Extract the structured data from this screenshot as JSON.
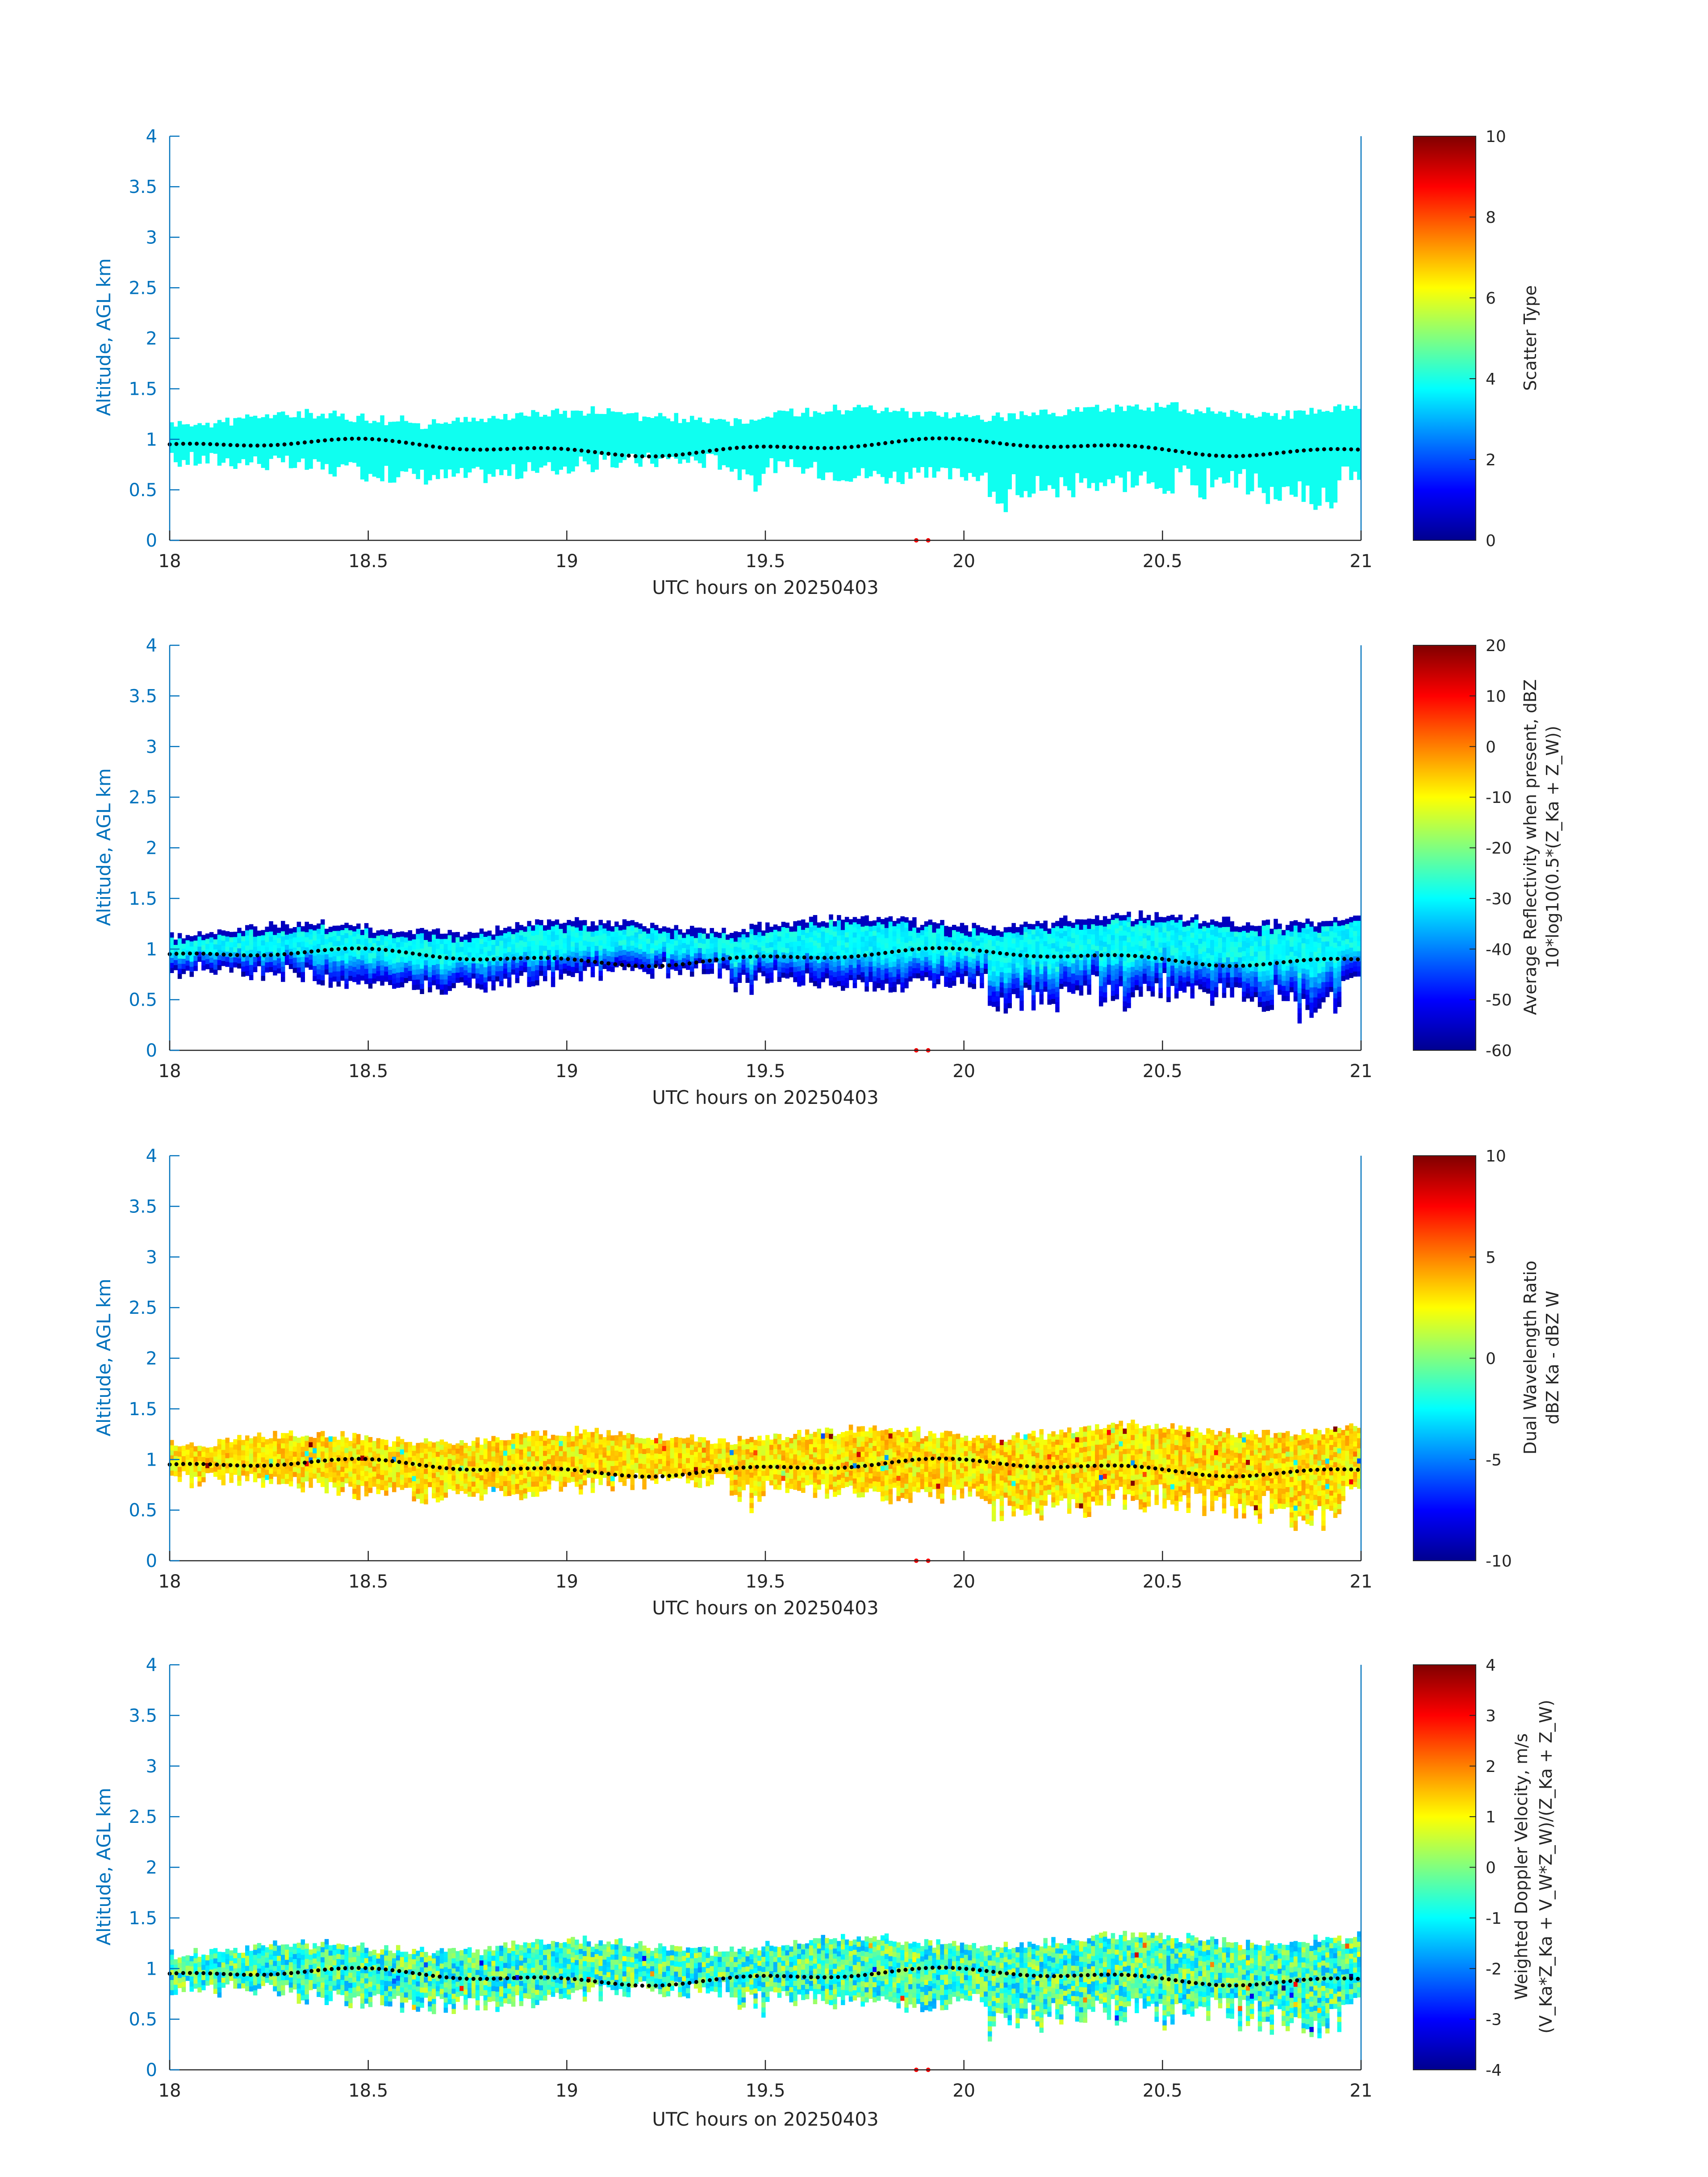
{
  "colors": {
    "axis_y": "#0072BD",
    "axis_x": "#262626",
    "dots": "#000000",
    "marker": "#ff0000",
    "colormap": "jet"
  },
  "chart_data": [
    {
      "type": "heatmap",
      "xlabel": "UTC hours on 20250403",
      "ylabel": "Altitude, AGL km",
      "xlim": [
        18,
        21
      ],
      "ylim": [
        0,
        4
      ],
      "xticks": [
        "18",
        "18.5",
        "19",
        "19.5",
        "20",
        "20.5",
        "21"
      ],
      "yticks": [
        "0",
        "0.5",
        "1",
        "1.5",
        "2",
        "2.5",
        "3",
        "3.5",
        "4"
      ],
      "colorbar": {
        "label": "Scatter Type",
        "clim": [
          0,
          10
        ],
        "ticks": [
          "0",
          "2",
          "4",
          "6",
          "8",
          "10"
        ]
      },
      "field": "scatter_type",
      "field_value": 3.9,
      "note": "cloud layer near 0.6-1.2 km, single scatter type"
    },
    {
      "type": "heatmap",
      "xlabel": "UTC hours on 20250403",
      "ylabel": "Altitude, AGL km",
      "xlim": [
        18,
        21
      ],
      "ylim": [
        0,
        4
      ],
      "xticks": [
        "18",
        "18.5",
        "19",
        "19.5",
        "20",
        "20.5",
        "21"
      ],
      "yticks": [
        "0",
        "0.5",
        "1",
        "1.5",
        "2",
        "2.5",
        "3",
        "3.5",
        "4"
      ],
      "colorbar": {
        "label": "Average Reflectivity when present, dBZ",
        "label2": "10*log10(0.5*(Z_Ka + Z_W))",
        "clim": [
          -60,
          20
        ],
        "ticks": [
          "-60",
          "-50",
          "-40",
          "-30",
          "-20",
          "-10",
          "0",
          "10",
          "20"
        ]
      },
      "field": "reflectivity_dbz",
      "top_value": -30,
      "base_value": -55
    },
    {
      "type": "heatmap",
      "xlabel": "UTC hours on 20250403",
      "ylabel": "Altitude, AGL km",
      "xlim": [
        18,
        21
      ],
      "ylim": [
        0,
        4
      ],
      "xticks": [
        "18",
        "18.5",
        "19",
        "19.5",
        "20",
        "20.5",
        "21"
      ],
      "yticks": [
        "0",
        "0.5",
        "1",
        "1.5",
        "2",
        "2.5",
        "3",
        "3.5",
        "4"
      ],
      "colorbar": {
        "label": "Dual Wavelength Ratio",
        "label2": "dBZ Ka - dBZ W",
        "clim": [
          -10,
          10
        ],
        "ticks": [
          "-10",
          "-5",
          "0",
          "5",
          "10"
        ]
      },
      "field": "dwr_db",
      "typical_value": 3
    },
    {
      "type": "heatmap",
      "xlabel": "UTC hours on 20250403",
      "ylabel": "Altitude, AGL km",
      "xlim": [
        18,
        21
      ],
      "ylim": [
        0,
        4
      ],
      "xticks": [
        "18",
        "18.5",
        "19",
        "19.5",
        "20",
        "20.5",
        "21"
      ],
      "yticks": [
        "0",
        "0.5",
        "1",
        "1.5",
        "2",
        "2.5",
        "3",
        "3.5",
        "4"
      ],
      "colorbar": {
        "label": "Weighted Doppler Velocity, m/s",
        "label2": "(V_Ka*Z_Ka + V_W*Z_W)/(Z_Ka + Z_W)",
        "clim": [
          -4,
          4
        ],
        "ticks": [
          "-4",
          "-3",
          "-2",
          "-1",
          "0",
          "1",
          "2",
          "3",
          "4"
        ]
      },
      "field": "doppler_velocity_ms",
      "typical_value": -0.5
    }
  ]
}
